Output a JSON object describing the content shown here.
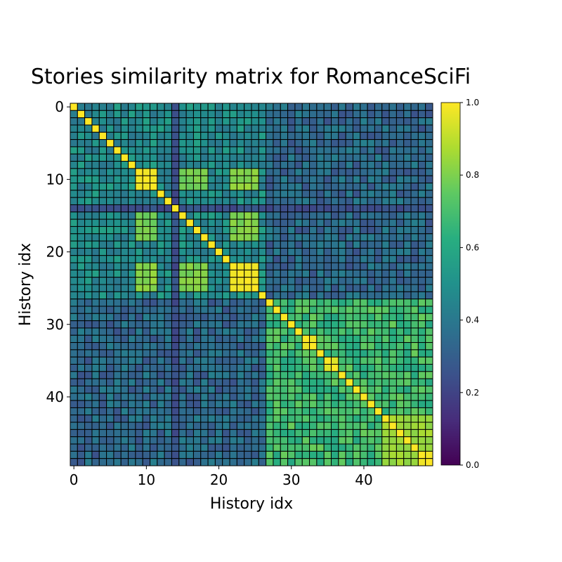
{
  "chart_data": {
    "type": "heatmap",
    "title": "Stories similarity matrix for RomanceSciFi",
    "xlabel": "History idx",
    "ylabel": "History idx",
    "n": 50,
    "x_ticks": [
      0,
      10,
      20,
      30,
      40
    ],
    "y_ticks": [
      0,
      10,
      20,
      30,
      40
    ],
    "colormap": "viridis",
    "cell_edge_color": "#000000",
    "colorbar": {
      "min": 0.0,
      "max": 1.0,
      "ticks": [
        "0.0",
        "0.2",
        "0.4",
        "0.6",
        "0.8",
        "1.0"
      ]
    },
    "diagonal_value": 1.0,
    "clusters": [
      {
        "rows": [
          0,
          26
        ],
        "cols": [
          0,
          26
        ],
        "base": 0.48
      },
      {
        "rows": [
          27,
          49
        ],
        "cols": [
          27,
          49
        ],
        "base": 0.68
      },
      {
        "rows": [
          0,
          26
        ],
        "cols": [
          27,
          49
        ],
        "base": 0.34
      }
    ],
    "high_similarity_blocks": [
      {
        "rows": [
          9,
          11
        ],
        "cols": [
          9,
          11
        ],
        "value": 0.98
      },
      {
        "rows": [
          22,
          25
        ],
        "cols": [
          22,
          25
        ],
        "value": 0.98
      },
      {
        "rows": [
          32,
          33
        ],
        "cols": [
          32,
          33
        ],
        "value": 0.97
      },
      {
        "rows": [
          35,
          36
        ],
        "cols": [
          35,
          36
        ],
        "value": 0.95
      },
      {
        "rows": [
          48,
          49
        ],
        "cols": [
          48,
          49
        ],
        "value": 0.98
      }
    ],
    "secondary_blocks": [
      {
        "rows": [
          9,
          11
        ],
        "cols": [
          22,
          25
        ],
        "value": 0.82
      },
      {
        "rows": [
          9,
          11
        ],
        "cols": [
          15,
          18
        ],
        "value": 0.78
      },
      {
        "rows": [
          15,
          18
        ],
        "cols": [
          22,
          25
        ],
        "value": 0.8
      },
      {
        "rows": [
          43,
          47
        ],
        "cols": [
          43,
          49
        ],
        "value": 0.85
      }
    ],
    "low_columns": [
      {
        "index": 14,
        "value": 0.24
      }
    ]
  }
}
